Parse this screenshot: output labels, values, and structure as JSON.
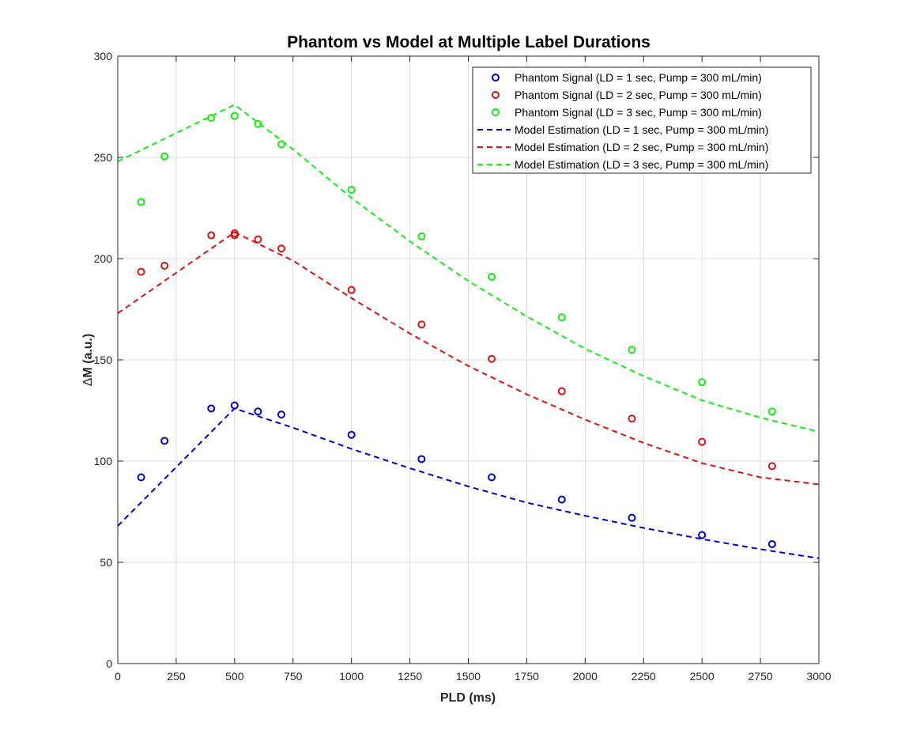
{
  "chart_data": {
    "type": "scatter",
    "title": "Phantom vs Model at Multiple Label Durations",
    "xlabel": "PLD (ms)",
    "ylabel_symbol": "Δ",
    "ylabel_text": "M (a.u.)",
    "xlim": [
      0,
      3000
    ],
    "ylim": [
      0,
      300
    ],
    "xticks": [
      0,
      250,
      500,
      750,
      1000,
      1250,
      1500,
      1750,
      2000,
      2250,
      2500,
      2750,
      3000
    ],
    "yticks": [
      0,
      50,
      100,
      150,
      200,
      250,
      300
    ],
    "grid": true,
    "legend_position": "top-right",
    "scatter_series": [
      {
        "name": "Phantom Signal (LD = 1 sec, Pump = 300 mL/min)",
        "color": "#0000CC",
        "x": [
          100,
          200,
          400,
          500,
          600,
          700,
          1000,
          1300,
          1600,
          1900,
          2200,
          2500,
          2800
        ],
        "y": [
          92,
          110,
          126,
          127.5,
          124.5,
          123,
          113,
          101,
          92,
          81,
          72,
          63.5,
          59
        ]
      },
      {
        "name": "Phantom Signal (LD = 2 sec, Pump = 300 mL/min)",
        "color": "#DD1111",
        "x": [
          100,
          200,
          400,
          500,
          500,
          600,
          700,
          1000,
          1300,
          1600,
          1900,
          2200,
          2500,
          2800
        ],
        "y": [
          193.5,
          196.5,
          211.5,
          212.5,
          211.5,
          209.5,
          205,
          184.5,
          167.5,
          150.5,
          134.5,
          121,
          109.5,
          97.5
        ]
      },
      {
        "name": "Phantom Signal (LD = 3 sec, Pump = 300 mL/min)",
        "color": "#11EE11",
        "x": [
          100,
          200,
          400,
          500,
          600,
          700,
          1000,
          1300,
          1600,
          1900,
          2200,
          2500,
          2800
        ],
        "y": [
          228,
          250.5,
          269.5,
          270.5,
          266.5,
          256.5,
          234,
          211,
          191,
          171,
          155,
          139,
          124.5
        ]
      }
    ],
    "line_series": [
      {
        "name": "Model Estimation (LD = 1 sec, Pump = 300 mL/min)",
        "color": "#0000CC",
        "x": [
          0,
          500,
          750,
          1000,
          1250,
          1500,
          1750,
          2000,
          2250,
          2500,
          2750,
          3000
        ],
        "y": [
          68,
          126,
          116.5,
          106,
          96.5,
          87.5,
          79.5,
          73,
          67,
          61.5,
          56.5,
          52
        ]
      },
      {
        "name": "Model Estimation (LD = 2 sec, Pump = 300 mL/min)",
        "color": "#DD1111",
        "x": [
          0,
          500,
          750,
          1000,
          1250,
          1500,
          1750,
          2000,
          2250,
          2500,
          2750,
          3000
        ],
        "y": [
          173,
          213,
          199,
          180.5,
          163,
          147,
          133,
          120.5,
          109,
          99,
          92,
          88.5
        ]
      },
      {
        "name": "Model Estimation (LD = 3 sec, Pump = 300 mL/min)",
        "color": "#11EE11",
        "x": [
          0,
          500,
          750,
          1000,
          1250,
          1500,
          1750,
          2000,
          2250,
          2500,
          2750,
          3000
        ],
        "y": [
          248,
          276,
          254,
          230,
          208.5,
          189,
          171.5,
          155.5,
          142,
          130,
          121.5,
          114.5
        ]
      }
    ]
  }
}
